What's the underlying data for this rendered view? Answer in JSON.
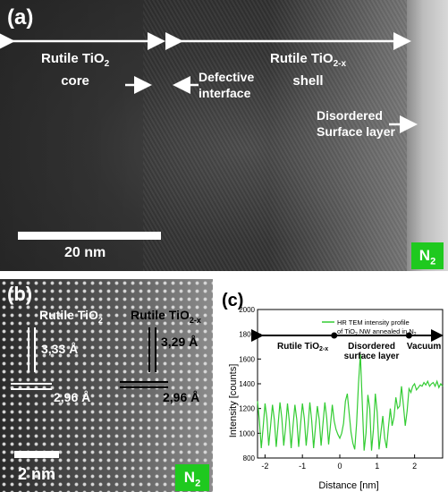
{
  "panel_a": {
    "label": "(a)",
    "core_label_line1": "Rutile TiO",
    "core_label_sub": "2",
    "core_label_line2": "core",
    "shell_label_line1": "Rutile TiO",
    "shell_label_sub": "2-x",
    "shell_label_line2": "shell",
    "interface_line1": "Defective",
    "interface_line2": "interface",
    "surface_line1": "Disordered",
    "surface_line2": "Surface layer",
    "scalebar_label": "20 nm",
    "badge": "N",
    "badge_sub": "2"
  },
  "panel_b": {
    "label": "(b)",
    "left_phase": "Rutile TiO",
    "left_phase_sub": "2",
    "right_phase": "Rutile TiO",
    "right_phase_sub": "2-x",
    "left_d_vertical": "3,33 Å",
    "left_d_horizontal": "2,96 Å",
    "right_d_vertical": "3,29 Å",
    "right_d_horizontal": "2,96 Å",
    "scalebar_label": "2 nm",
    "badge": "N",
    "badge_sub": "2"
  },
  "chart_data": {
    "type": "line",
    "panel_label": "(c)",
    "xlabel": "Distance [nm]",
    "ylabel": "Intensity [counts]",
    "xlim": [
      -2.2,
      2.75
    ],
    "ylim": [
      800,
      2000
    ],
    "xticks": [
      -2,
      -1,
      0,
      1,
      2
    ],
    "yticks": [
      800,
      1000,
      1200,
      1400,
      1600,
      1800,
      2000
    ],
    "legend_line1": "HR TEM intensity profile",
    "legend_line2": "of TiO",
    "legend_line2_sub": "2",
    "legend_line2_rest": " NW annealed in N",
    "legend_line2_sub2": "2",
    "series_color": "#33cc33",
    "region_arrow_y": 1790,
    "region_markers_x": [
      -0.15,
      1.85
    ],
    "region_labels": {
      "core": "Rutile TiO",
      "core_sub": "2-x",
      "surface_line1": "Disordered",
      "surface_line2": "surface layer",
      "vacuum": "Vacuum"
    },
    "x": [
      -2.2,
      -2.15,
      -2.1,
      -2.05,
      -2.0,
      -1.95,
      -1.9,
      -1.85,
      -1.8,
      -1.75,
      -1.7,
      -1.65,
      -1.6,
      -1.55,
      -1.5,
      -1.45,
      -1.4,
      -1.35,
      -1.3,
      -1.25,
      -1.2,
      -1.15,
      -1.1,
      -1.05,
      -1.0,
      -0.95,
      -0.9,
      -0.85,
      -0.8,
      -0.75,
      -0.7,
      -0.65,
      -0.6,
      -0.55,
      -0.5,
      -0.45,
      -0.4,
      -0.35,
      -0.3,
      -0.25,
      -0.2,
      -0.15,
      -0.1,
      -0.05,
      0.0,
      0.05,
      0.1,
      0.15,
      0.2,
      0.25,
      0.3,
      0.35,
      0.4,
      0.45,
      0.5,
      0.55,
      0.6,
      0.65,
      0.7,
      0.75,
      0.8,
      0.85,
      0.9,
      0.95,
      1.0,
      1.05,
      1.1,
      1.15,
      1.2,
      1.25,
      1.3,
      1.35,
      1.4,
      1.45,
      1.5,
      1.55,
      1.6,
      1.65,
      1.7,
      1.75,
      1.8,
      1.85,
      1.9,
      1.95,
      2.0,
      2.05,
      2.1,
      2.15,
      2.2,
      2.25,
      2.3,
      2.35,
      2.4,
      2.45,
      2.5,
      2.55,
      2.6,
      2.65,
      2.7,
      2.75
    ],
    "y": [
      1260,
      1100,
      880,
      1050,
      1240,
      1120,
      900,
      1060,
      1230,
      1110,
      890,
      1070,
      1250,
      1120,
      900,
      1050,
      1240,
      1100,
      880,
      1060,
      1230,
      1110,
      890,
      1070,
      1240,
      1120,
      900,
      1060,
      1250,
      1100,
      880,
      1050,
      1220,
      1110,
      900,
      1080,
      1250,
      1120,
      910,
      1060,
      1230,
      1100,
      1030,
      990,
      960,
      1000,
      1080,
      1260,
      1320,
      1160,
      1010,
      920,
      870,
      1080,
      1400,
      1640,
      1250,
      860,
      1000,
      1310,
      1200,
      860,
      1030,
      1320,
      1170,
      870,
      1010,
      1140,
      960,
      880,
      1050,
      1200,
      1060,
      1130,
      1290,
      1200,
      1220,
      1380,
      1230,
      1060,
      1180,
      1360,
      1330,
      1380,
      1400,
      1350,
      1370,
      1390,
      1380,
      1410,
      1390,
      1420,
      1380,
      1400,
      1410,
      1380,
      1420,
      1370,
      1400,
      1380
    ]
  }
}
